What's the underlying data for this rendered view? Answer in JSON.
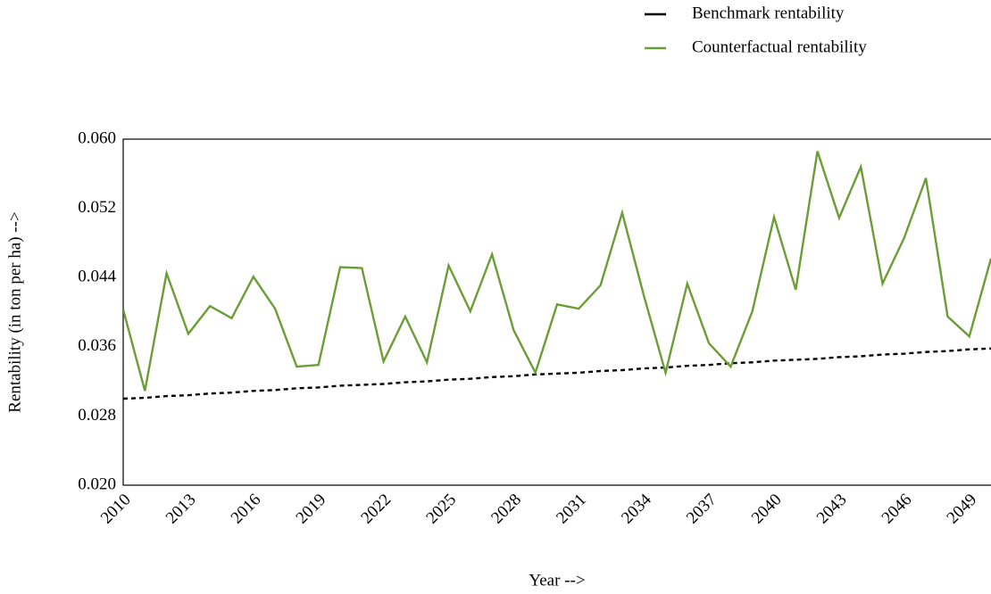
{
  "chart_data": {
    "type": "line",
    "x_label": "Year -->",
    "y_label": "Rentability (in ton per ha) -->",
    "x": [
      2010,
      2011,
      2012,
      2013,
      2014,
      2015,
      2016,
      2017,
      2018,
      2019,
      2020,
      2021,
      2022,
      2023,
      2024,
      2025,
      2026,
      2027,
      2028,
      2029,
      2030,
      2031,
      2032,
      2033,
      2034,
      2035,
      2036,
      2037,
      2038,
      2039,
      2040,
      2041,
      2042,
      2043,
      2044,
      2045,
      2046,
      2047,
      2048,
      2049,
      2050
    ],
    "series": [
      {
        "name": "Benchmark rentability",
        "color": "#000000",
        "dashed": true,
        "values": [
          0.03,
          0.0301,
          0.0303,
          0.0304,
          0.0306,
          0.0307,
          0.0309,
          0.031,
          0.0312,
          0.0313,
          0.0315,
          0.0316,
          0.0317,
          0.0319,
          0.032,
          0.0322,
          0.0323,
          0.0325,
          0.0326,
          0.0328,
          0.0329,
          0.033,
          0.0332,
          0.0333,
          0.0335,
          0.0336,
          0.0338,
          0.0339,
          0.0341,
          0.0342,
          0.0344,
          0.0345,
          0.0346,
          0.0348,
          0.0349,
          0.0351,
          0.0352,
          0.0354,
          0.0355,
          0.0357,
          0.0358
        ]
      },
      {
        "name": "Counterfactual rentability",
        "color": "#6a9e35",
        "dashed": false,
        "values": [
          0.0403,
          0.0309,
          0.0445,
          0.0375,
          0.0407,
          0.0393,
          0.0441,
          0.0404,
          0.0337,
          0.0339,
          0.0452,
          0.0451,
          0.0343,
          0.0395,
          0.0342,
          0.0454,
          0.0401,
          0.0467,
          0.0379,
          0.033,
          0.0409,
          0.0404,
          0.0431,
          0.0515,
          0.0419,
          0.033,
          0.0433,
          0.0364,
          0.0337,
          0.0401,
          0.051,
          0.0426,
          0.0586,
          0.0509,
          0.0568,
          0.0433,
          0.0486,
          0.0555,
          0.0395,
          0.0372,
          0.0462
        ]
      }
    ],
    "xlim": [
      2010,
      2050
    ],
    "xticks": [
      2010,
      2013,
      2016,
      2019,
      2022,
      2025,
      2028,
      2031,
      2034,
      2037,
      2040,
      2043,
      2046,
      2049
    ],
    "ylim": [
      0.02,
      0.06
    ],
    "yticks": [
      {
        "value": 0.02,
        "label": "0.020"
      },
      0.028,
      0.036,
      0.044,
      0.052,
      {
        "value": 0.06,
        "label": "0.060"
      }
    ],
    "grid": false,
    "legend": "top-right"
  }
}
